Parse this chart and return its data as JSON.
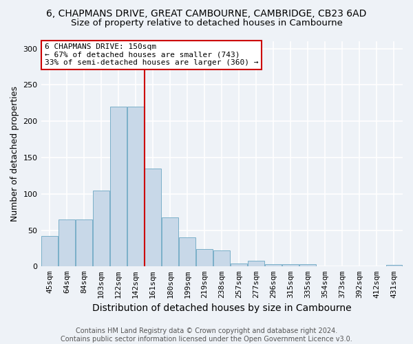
{
  "title1": "6, CHAPMANS DRIVE, GREAT CAMBOURNE, CAMBRIDGE, CB23 6AD",
  "title2": "Size of property relative to detached houses in Cambourne",
  "xlabel": "Distribution of detached houses by size in Cambourne",
  "ylabel": "Number of detached properties",
  "categories": [
    "45sqm",
    "64sqm",
    "84sqm",
    "103sqm",
    "122sqm",
    "142sqm",
    "161sqm",
    "180sqm",
    "199sqm",
    "219sqm",
    "238sqm",
    "257sqm",
    "277sqm",
    "296sqm",
    "315sqm",
    "335sqm",
    "354sqm",
    "373sqm",
    "392sqm",
    "412sqm",
    "431sqm"
  ],
  "values": [
    42,
    65,
    65,
    104,
    220,
    220,
    135,
    68,
    40,
    24,
    22,
    4,
    8,
    3,
    3,
    3,
    0,
    0,
    0,
    0,
    2
  ],
  "bar_color": "#c8d8e8",
  "bar_edgecolor": "#7aafc8",
  "ylim": [
    0,
    310
  ],
  "yticks": [
    0,
    50,
    100,
    150,
    200,
    250,
    300
  ],
  "annotation_title": "6 CHAPMANS DRIVE: 150sqm",
  "annotation_line1": "← 67% of detached houses are smaller (743)",
  "annotation_line2": "33% of semi-detached houses are larger (360) →",
  "annotation_box_color": "#ffffff",
  "annotation_box_edgecolor": "#cc0000",
  "red_line_x": 5.5,
  "footer1": "Contains HM Land Registry data © Crown copyright and database right 2024.",
  "footer2": "Contains public sector information licensed under the Open Government Licence v3.0.",
  "background_color": "#eef2f7",
  "grid_color": "#ffffff",
  "title1_fontsize": 10,
  "title2_fontsize": 9.5,
  "xlabel_fontsize": 10,
  "ylabel_fontsize": 9,
  "tick_fontsize": 8,
  "annotation_fontsize": 8,
  "footer_fontsize": 7
}
